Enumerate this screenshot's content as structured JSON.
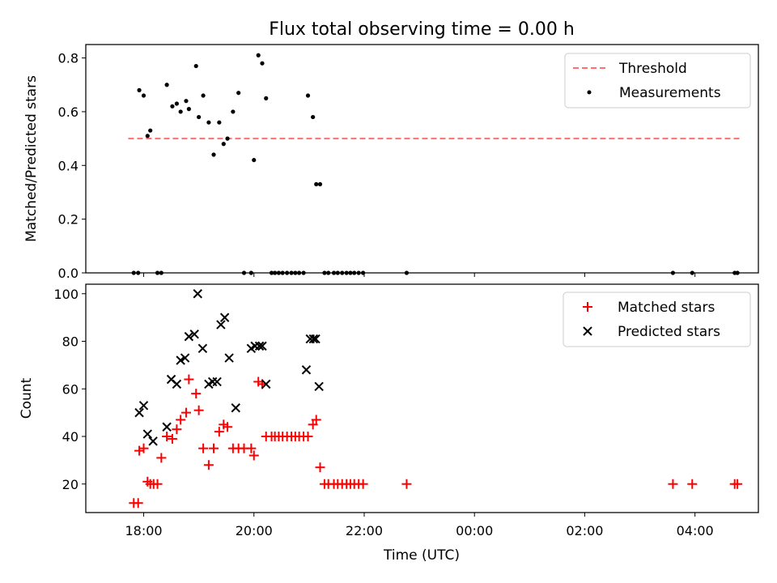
{
  "chart_data": [
    {
      "type": "scatter",
      "title": "Flux total observing time = 0.00 h",
      "xlabel": "",
      "ylabel": "Matched/Predicted stars",
      "ylim": [
        0,
        0.85
      ],
      "yticks": [
        0.0,
        0.2,
        0.4,
        0.6,
        0.8
      ],
      "ytick_labels": [
        "0.0",
        "0.2",
        "0.4",
        "0.6",
        "0.8"
      ],
      "x_unit": "hours since 00:00 of the first night (UTC)",
      "xlim": [
        16.95,
        29.15
      ],
      "legend_position": "top-right",
      "threshold": {
        "name": "Threshold",
        "value": 0.5,
        "x_range": [
          17.72,
          28.85
        ],
        "color": "#ff7070"
      },
      "series": [
        {
          "name": "Measurements",
          "color": "#000000",
          "x": [
            17.82,
            17.9,
            17.92,
            18.0,
            18.07,
            18.12,
            18.25,
            18.32,
            18.42,
            18.52,
            18.6,
            18.67,
            18.77,
            18.82,
            18.95,
            19.0,
            19.08,
            19.18,
            19.27,
            19.37,
            19.45,
            19.52,
            19.62,
            19.72,
            19.82,
            19.95,
            20.0,
            20.08,
            20.15,
            20.22,
            20.32,
            20.38,
            20.45,
            20.52,
            20.6,
            20.68,
            20.75,
            20.82,
            20.9,
            20.98,
            21.07,
            21.13,
            21.2,
            21.28,
            21.35,
            21.45,
            21.52,
            21.6,
            21.68,
            21.75,
            21.82,
            21.9,
            21.98,
            22.77,
            27.6,
            27.95,
            28.72,
            28.77
          ],
          "y": [
            0,
            0,
            0.68,
            0.66,
            0.51,
            0.53,
            0,
            0,
            0.7,
            0.62,
            0.63,
            0.6,
            0.64,
            0.61,
            0.77,
            0.58,
            0.66,
            0.56,
            0.44,
            0.56,
            0.48,
            0.5,
            0.6,
            0.67,
            0,
            0,
            0.42,
            0.81,
            0.78,
            0.65,
            0,
            0,
            0,
            0,
            0,
            0,
            0,
            0,
            0,
            0.66,
            0.58,
            0.33,
            0.33,
            0,
            0,
            0,
            0,
            0,
            0,
            0,
            0,
            0,
            0,
            0,
            0,
            0,
            0,
            0
          ]
        }
      ]
    },
    {
      "type": "scatter",
      "title": "",
      "xlabel": "Time (UTC)",
      "ylabel": "Count",
      "ylim": [
        8,
        104
      ],
      "yticks": [
        20,
        40,
        60,
        80,
        100
      ],
      "ytick_labels": [
        "20",
        "40",
        "60",
        "80",
        "100"
      ],
      "x_unit": "hours since 00:00 of the first night (UTC)",
      "xlim": [
        16.95,
        29.15
      ],
      "xticks": [
        18,
        20,
        22,
        24,
        26,
        28
      ],
      "xtick_labels": [
        "18:00",
        "20:00",
        "22:00",
        "00:00",
        "02:00",
        "04:00"
      ],
      "legend_position": "top-right",
      "series": [
        {
          "name": "Matched stars",
          "marker": "+",
          "color": "#ff0000",
          "x": [
            17.82,
            17.9,
            17.92,
            18.0,
            18.07,
            18.12,
            18.18,
            18.25,
            18.32,
            18.42,
            18.52,
            18.6,
            18.67,
            18.77,
            18.82,
            18.95,
            19.0,
            19.08,
            19.18,
            19.27,
            19.37,
            19.45,
            19.52,
            19.62,
            19.72,
            19.82,
            19.95,
            20.0,
            20.08,
            20.15,
            20.22,
            20.32,
            20.38,
            20.45,
            20.52,
            20.6,
            20.68,
            20.75,
            20.82,
            20.9,
            20.98,
            21.07,
            21.13,
            21.2,
            21.28,
            21.35,
            21.45,
            21.52,
            21.6,
            21.68,
            21.75,
            21.82,
            21.9,
            21.98,
            22.77,
            27.6,
            27.95,
            28.72,
            28.77
          ],
          "y": [
            12,
            12,
            34,
            35,
            21,
            20,
            20,
            20,
            31,
            40,
            39,
            43,
            47,
            50,
            64,
            58,
            51,
            35,
            28,
            35,
            42,
            45,
            44,
            35,
            35,
            35,
            35,
            32,
            63,
            62,
            40,
            40,
            40,
            40,
            40,
            40,
            40,
            40,
            40,
            40,
            40,
            45,
            47,
            27,
            20,
            20,
            20,
            20,
            20,
            20,
            20,
            20,
            20,
            20,
            20,
            20,
            20,
            20,
            20
          ]
        },
        {
          "name": "Predicted stars",
          "marker": "x",
          "color": "#000000",
          "x": [
            17.92,
            18.0,
            18.07,
            18.17,
            18.42,
            18.5,
            18.6,
            18.67,
            18.75,
            18.82,
            18.92,
            18.98,
            19.07,
            19.18,
            19.25,
            19.33,
            19.4,
            19.47,
            19.55,
            19.67,
            19.95,
            20.02,
            20.1,
            20.15,
            20.22,
            20.95,
            21.02,
            21.08,
            21.12,
            21.18
          ],
          "y": [
            50,
            53,
            41,
            38,
            44,
            64,
            62,
            72,
            73,
            82,
            83,
            100,
            77,
            62,
            63,
            63,
            87,
            90,
            73,
            52,
            77,
            78,
            78,
            78,
            62,
            68,
            81,
            81,
            81,
            61
          ]
        }
      ]
    }
  ]
}
